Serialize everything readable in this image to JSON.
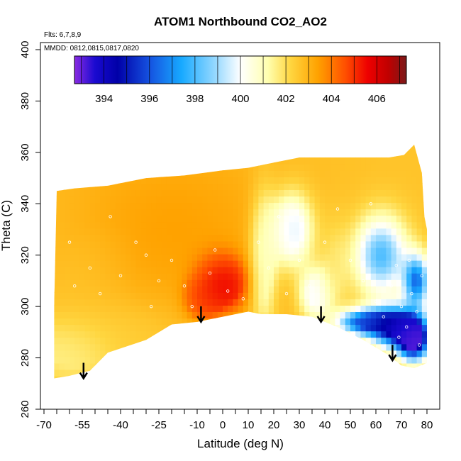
{
  "chart_data": {
    "type": "heatmap",
    "title": "ATOM1 Northbound CO2_AO2",
    "annotations": {
      "flights": "Flts: 6,7,8,9",
      "dates": "MMDD: 0812,0815,0817,0820"
    },
    "xlabel": "Latitude (deg N)",
    "ylabel": "Theta (C)",
    "xlim": [
      -70,
      80
    ],
    "ylim": [
      260,
      400
    ],
    "x_ticks": [
      -70,
      -55,
      -40,
      -25,
      -10,
      0,
      10,
      20,
      30,
      40,
      50,
      60,
      70,
      80
    ],
    "x_minor_ticks": [
      -65,
      -60,
      -50,
      -45,
      -35,
      -30,
      -20,
      -15,
      -5,
      5,
      15,
      25,
      35,
      45,
      55,
      65,
      75
    ],
    "y_ticks": [
      260,
      280,
      300,
      320,
      340,
      360,
      380,
      400
    ],
    "colorbar": {
      "range": [
        392.7,
        407.3
      ],
      "ticks": [
        394,
        396,
        398,
        400,
        402,
        404,
        406
      ],
      "stops": [
        {
          "value": 392.7,
          "color": "#8a2be2"
        },
        {
          "value": 393.6,
          "color": "#1a0ad0"
        },
        {
          "value": 394.6,
          "color": "#0000a8"
        },
        {
          "value": 396.0,
          "color": "#1552e0"
        },
        {
          "value": 397.4,
          "color": "#17a9ff"
        },
        {
          "value": 399.0,
          "color": "#9fdcff"
        },
        {
          "value": 400.0,
          "color": "#ffffff"
        },
        {
          "value": 401.2,
          "color": "#ffffb0"
        },
        {
          "value": 402.2,
          "color": "#ffd640"
        },
        {
          "value": 403.4,
          "color": "#ffa200"
        },
        {
          "value": 404.6,
          "color": "#ff5000"
        },
        {
          "value": 405.6,
          "color": "#ee0000"
        },
        {
          "value": 406.5,
          "color": "#c00000"
        },
        {
          "value": 407.3,
          "color": "#7a1a1a"
        }
      ]
    },
    "arrows": [
      {
        "lat": -54.5,
        "theta": 272
      },
      {
        "lat": -8.5,
        "theta": 294
      },
      {
        "lat": 38.5,
        "theta": 294
      },
      {
        "lat": 66.5,
        "theta": 279
      }
    ],
    "data_boundary": {
      "top": [
        {
          "lat": -65,
          "theta": 345
        },
        {
          "lat": -58,
          "theta": 346
        },
        {
          "lat": -45,
          "theta": 347
        },
        {
          "lat": -30,
          "theta": 350
        },
        {
          "lat": -15,
          "theta": 351
        },
        {
          "lat": 0,
          "theta": 353
        },
        {
          "lat": 10,
          "theta": 354
        },
        {
          "lat": 20,
          "theta": 356
        },
        {
          "lat": 30,
          "theta": 358
        },
        {
          "lat": 45,
          "theta": 358
        },
        {
          "lat": 55,
          "theta": 358
        },
        {
          "lat": 65,
          "theta": 358
        },
        {
          "lat": 71,
          "theta": 359
        },
        {
          "lat": 75,
          "theta": 363
        },
        {
          "lat": 78,
          "theta": 352
        },
        {
          "lat": 79,
          "theta": 335
        },
        {
          "lat": 80,
          "theta": 330
        }
      ],
      "bottom": [
        {
          "lat": 80,
          "theta": 278
        },
        {
          "lat": 75,
          "theta": 276
        },
        {
          "lat": 70,
          "theta": 277
        },
        {
          "lat": 65,
          "theta": 281
        },
        {
          "lat": 55,
          "theta": 287
        },
        {
          "lat": 45,
          "theta": 292
        },
        {
          "lat": 35,
          "theta": 296
        },
        {
          "lat": 25,
          "theta": 297
        },
        {
          "lat": 15,
          "theta": 297
        },
        {
          "lat": 10,
          "theta": 298
        },
        {
          "lat": 0,
          "theta": 296
        },
        {
          "lat": -10,
          "theta": 294
        },
        {
          "lat": -20,
          "theta": 293
        },
        {
          "lat": -30,
          "theta": 287
        },
        {
          "lat": -45,
          "theta": 282
        },
        {
          "lat": -52,
          "theta": 275
        },
        {
          "lat": -60,
          "theta": 273
        },
        {
          "lat": -66,
          "theta": 272
        },
        {
          "lat": -66,
          "theta": 300
        },
        {
          "lat": -65,
          "theta": 345
        }
      ]
    },
    "field_blobs": [
      {
        "lat": -20,
        "theta": 330,
        "value": 403.4,
        "lat_spread": 50,
        "theta_spread": 40
      },
      {
        "lat": -55,
        "theta": 310,
        "value": 402.4,
        "lat_spread": 20,
        "theta_spread": 25
      },
      {
        "lat": -60,
        "theta": 283,
        "value": 401.4,
        "lat_spread": 15,
        "theta_spread": 12
      },
      {
        "lat": -35,
        "theta": 290,
        "value": 402.2,
        "lat_spread": 20,
        "theta_spread": 12
      },
      {
        "lat": 0,
        "theta": 309,
        "value": 406.2,
        "lat_spread": 9,
        "theta_spread": 10
      },
      {
        "lat": -8,
        "theta": 303,
        "value": 405.0,
        "lat_spread": 6,
        "theta_spread": 7
      },
      {
        "lat": 16,
        "theta": 318,
        "value": 400.2,
        "lat_spread": 5,
        "theta_spread": 25
      },
      {
        "lat": 27,
        "theta": 330,
        "value": 398.8,
        "lat_spread": 8,
        "theta_spread": 14
      },
      {
        "lat": 36,
        "theta": 305,
        "value": 399.6,
        "lat_spread": 6,
        "theta_spread": 10
      },
      {
        "lat": 44,
        "theta": 315,
        "value": 401.8,
        "lat_spread": 6,
        "theta_spread": 20
      },
      {
        "lat": 62,
        "theta": 320,
        "value": 398.0,
        "lat_spread": 10,
        "theta_spread": 15
      },
      {
        "lat": 55,
        "theta": 350,
        "value": 402.6,
        "lat_spread": 20,
        "theta_spread": 8
      },
      {
        "lat": 68,
        "theta": 292,
        "value": 394.4,
        "lat_spread": 10,
        "theta_spread": 8
      },
      {
        "lat": 75,
        "theta": 287,
        "value": 394.0,
        "lat_spread": 6,
        "theta_spread": 8
      },
      {
        "lat": 55,
        "theta": 294,
        "value": 396.4,
        "lat_spread": 10,
        "theta_spread": 5
      },
      {
        "lat": 76,
        "theta": 310,
        "value": 396.8,
        "lat_spread": 5,
        "theta_spread": 10
      }
    ],
    "field_base_value": 402.6,
    "sample_points": [
      {
        "lat": -58,
        "theta": 308
      },
      {
        "lat": -52,
        "theta": 315
      },
      {
        "lat": -48,
        "theta": 305
      },
      {
        "lat": -40,
        "theta": 312
      },
      {
        "lat": -34,
        "theta": 325
      },
      {
        "lat": -30,
        "theta": 320
      },
      {
        "lat": -25,
        "theta": 310
      },
      {
        "lat": -20,
        "theta": 318
      },
      {
        "lat": -15,
        "theta": 308
      },
      {
        "lat": -12,
        "theta": 300
      },
      {
        "lat": -5,
        "theta": 313
      },
      {
        "lat": 2,
        "theta": 306
      },
      {
        "lat": 8,
        "theta": 303
      },
      {
        "lat": 14,
        "theta": 325
      },
      {
        "lat": 18,
        "theta": 315
      },
      {
        "lat": 22,
        "theta": 335
      },
      {
        "lat": 30,
        "theta": 318
      },
      {
        "lat": 34,
        "theta": 308
      },
      {
        "lat": 40,
        "theta": 325
      },
      {
        "lat": 45,
        "theta": 338
      },
      {
        "lat": 50,
        "theta": 318
      },
      {
        "lat": 55,
        "theta": 310
      },
      {
        "lat": 60,
        "theta": 302
      },
      {
        "lat": 63,
        "theta": 296
      },
      {
        "lat": 66,
        "theta": 308
      },
      {
        "lat": 68,
        "theta": 316
      },
      {
        "lat": 70,
        "theta": 300
      },
      {
        "lat": 72,
        "theta": 292
      },
      {
        "lat": 74,
        "theta": 305
      },
      {
        "lat": 76,
        "theta": 298
      },
      {
        "lat": 77,
        "theta": 285
      },
      {
        "lat": 78,
        "theta": 312
      },
      {
        "lat": 73,
        "theta": 318
      },
      {
        "lat": 69,
        "theta": 288
      },
      {
        "lat": -60,
        "theta": 325
      },
      {
        "lat": -44,
        "theta": 335
      },
      {
        "lat": -28,
        "theta": 300
      },
      {
        "lat": -3,
        "theta": 322
      },
      {
        "lat": 25,
        "theta": 305
      },
      {
        "lat": 58,
        "theta": 340
      }
    ]
  }
}
